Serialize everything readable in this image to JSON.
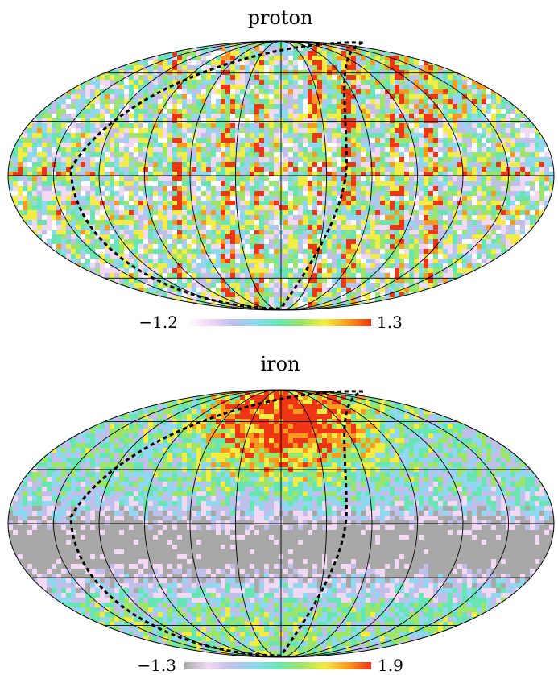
{
  "chart_data": [
    {
      "type": "heatmap",
      "projection": "mollweide",
      "title": "proton",
      "colorbar": {
        "min_label": "−1.2",
        "max_label": "1.3",
        "min": -1.2,
        "max": 1.3
      },
      "colormap": [
        "#ffffff",
        "#f3d8f4",
        "#bfbfea",
        "#8fd8ef",
        "#69e5b3",
        "#9de46a",
        "#f3ec43",
        "#f89a20",
        "#ee3514"
      ],
      "grid": true,
      "overlay": "dashed great-circle curve",
      "pattern": "uniform noise with enhanced meridional stripes near the center and in the upper-right"
    },
    {
      "type": "heatmap",
      "projection": "mollweide",
      "title": "iron",
      "colorbar": {
        "min_label": "−1.3",
        "max_label": "1.9",
        "min": -1.3,
        "max": 1.9
      },
      "colormap": [
        "#a8a8a8",
        "#f3d8f4",
        "#bfbfea",
        "#8fd8ef",
        "#69e5b3",
        "#9de46a",
        "#f3ec43",
        "#f89a20",
        "#ee3514"
      ],
      "grid": true,
      "overlay": "dashed great-circle curve",
      "pattern": "strong hot spot at north-center, grey low band across the lower middle"
    }
  ]
}
